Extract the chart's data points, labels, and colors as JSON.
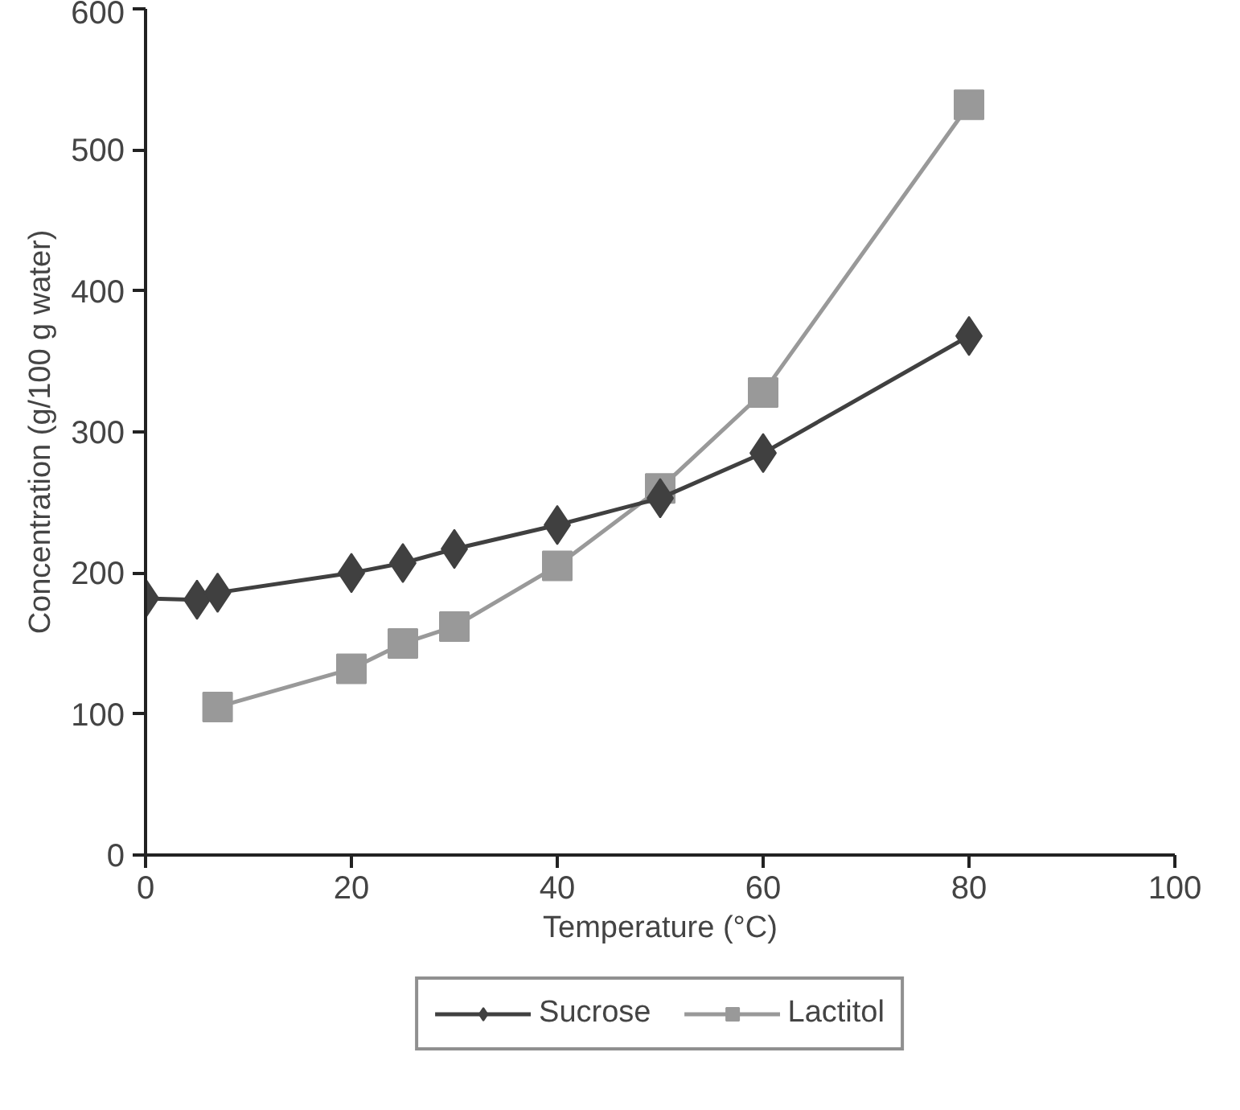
{
  "chart_data": {
    "type": "line",
    "xlabel": "Temperature (°C)",
    "ylabel": "Concentration (g/100 g water)",
    "xlim": [
      0,
      100
    ],
    "xticks": [
      0,
      20,
      40,
      60,
      80,
      100
    ],
    "ylim": [
      0,
      600
    ],
    "yticks": [
      0,
      100,
      200,
      300,
      400,
      500,
      600
    ],
    "grid": false,
    "legend": "bottom",
    "series": [
      {
        "name": "Sucrose",
        "color": "#404040",
        "marker": "diamond",
        "x": [
          0,
          5,
          7,
          20,
          25,
          30,
          40,
          50,
          60,
          80
        ],
        "values": [
          182,
          181,
          186,
          200,
          207,
          217,
          234,
          253,
          285,
          368
        ]
      },
      {
        "name": "Lactitol",
        "color": "#999999",
        "marker": "square",
        "x": [
          7,
          20,
          25,
          30,
          40,
          50,
          60,
          80
        ],
        "values": [
          105,
          132,
          150,
          162,
          205,
          260,
          328,
          532
        ]
      }
    ]
  }
}
